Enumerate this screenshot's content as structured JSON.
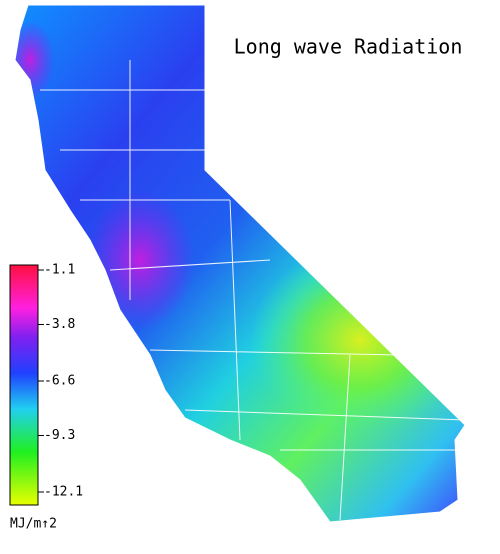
{
  "title": "Long wave Radiation",
  "legend": {
    "lim": [
      -1.1,
      -12.1
    ],
    "ticks": [
      -1.1,
      -3.8,
      -6.6,
      -9.3,
      -12.1
    ],
    "unit": "MJ/m↑2"
  }
}
